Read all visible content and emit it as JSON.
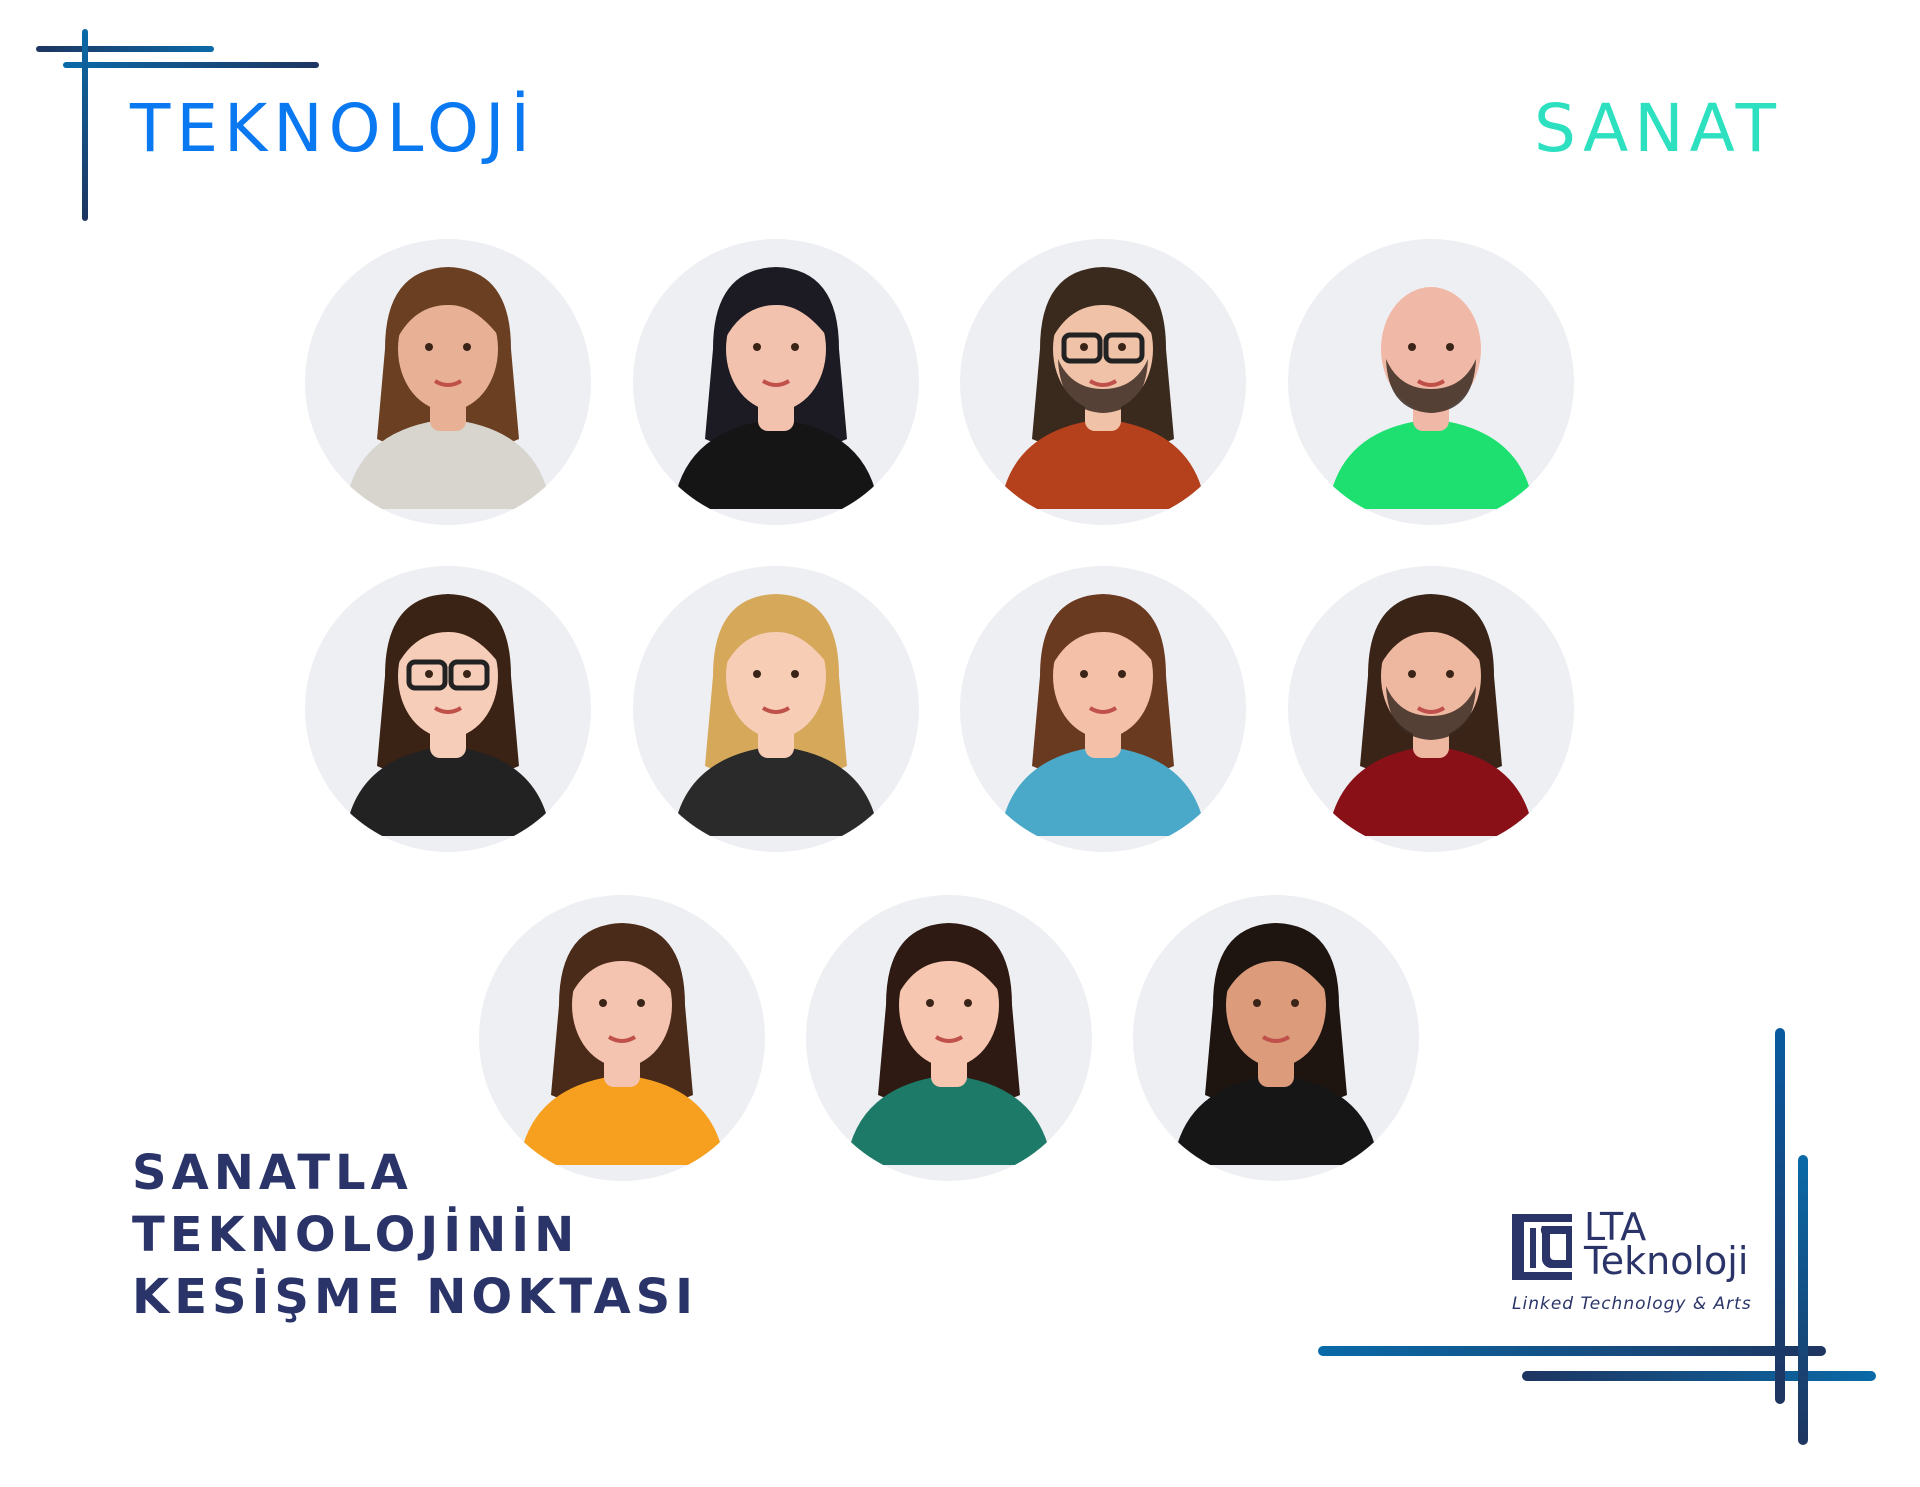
{
  "colors": {
    "primary_blue": "#0a78f0",
    "teal": "#2de0c0",
    "navy": "#2a3468",
    "line_dark": "#1e3560",
    "line_light": "#0a6aa8",
    "circle_bg": "#eeeff3"
  },
  "header": {
    "left_title": "TEKNOLOJİ",
    "right_title": "SANAT"
  },
  "tagline": {
    "lines": [
      "SANATLA",
      "TEKNOLOJİNİN",
      "KESİŞME NOKTASI"
    ]
  },
  "logo": {
    "mark": "lta",
    "name_line1": "LTA",
    "name_line2": "Teknoloji",
    "subtitle": "Linked Technology & Arts"
  },
  "team": [
    {
      "hair": "#6b3f22",
      "skin": "#e8b196",
      "shirt": "#d8d4ce",
      "glasses": false,
      "beard": false
    },
    {
      "hair": "#1c1a22",
      "skin": "#f2c2ae",
      "shirt": "#151515",
      "glasses": false,
      "beard": false
    },
    {
      "hair": "#3a2a1e",
      "skin": "#f0c2a8",
      "shirt": "#b4401c",
      "glasses": true,
      "beard": true
    },
    {
      "hair": "none",
      "skin": "#f0b8a6",
      "shirt": "#1ee070",
      "glasses": false,
      "beard": true
    },
    {
      "hair": "#3a2214",
      "skin": "#f5cdb8",
      "shirt": "#222222",
      "glasses": true,
      "beard": false
    },
    {
      "hair": "#d6a85a",
      "skin": "#f7cdb6",
      "shirt": "#2a2a2a",
      "glasses": false,
      "beard": false
    },
    {
      "hair": "#6a3a20",
      "skin": "#f4c0a8",
      "shirt": "#4aa8c8",
      "glasses": false,
      "beard": false
    },
    {
      "hair": "#3a2418",
      "skin": "#eeb8a0",
      "shirt": "#8a1018",
      "glasses": false,
      "beard": true
    },
    {
      "hair": "#4a2a18",
      "skin": "#f5c4b0",
      "shirt": "#f7a020",
      "glasses": false,
      "beard": false
    },
    {
      "hair": "#2e1a12",
      "skin": "#f6c6b0",
      "shirt": "#1e7a68",
      "glasses": false,
      "beard": false
    },
    {
      "hair": "#1e1410",
      "skin": "#dc9c7c",
      "shirt": "#161616",
      "glasses": false,
      "beard": false
    }
  ]
}
